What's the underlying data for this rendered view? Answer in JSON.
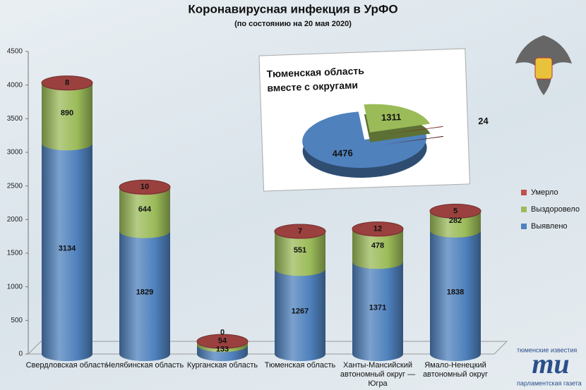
{
  "chart_data": [
    {
      "type": "bar",
      "title": "Коронавирусная инфекция в УрФО",
      "subtitle": "(по состоянию на 20 мая 2020)",
      "categories": [
        "Свердловская область",
        "Челябинская область",
        "Курганская область",
        "Тюменская область",
        "Ханты-Мансийский автономный округ — Югра",
        "Ямало-Ненецкий автономный округ"
      ],
      "series": [
        {
          "name": "Выявлено",
          "color": "#4f81bd",
          "values": [
            3134,
            1829,
            133,
            1267,
            1371,
            1838
          ]
        },
        {
          "name": "Выздоровело",
          "color": "#9bbb59",
          "values": [
            890,
            644,
            54,
            551,
            478,
            282
          ]
        },
        {
          "name": "Умерло",
          "color": "#c0504d",
          "values": [
            8,
            10,
            0,
            7,
            12,
            5
          ]
        }
      ],
      "stacked": true,
      "ylim": [
        0,
        4500
      ],
      "yticks": [
        0,
        500,
        1000,
        1500,
        2000,
        2500,
        3000,
        3500,
        4000,
        4500
      ],
      "legend": "right"
    },
    {
      "type": "pie",
      "title": "Тюменская область вместе с округами",
      "values": [
        4476,
        1311,
        24
      ],
      "colors": [
        "#4f81bd",
        "#9bbb59",
        "#7b2a1e"
      ]
    }
  ],
  "publisher": {
    "name": "тюменские известия",
    "logo": "ти",
    "partner": "парламентская газета"
  }
}
